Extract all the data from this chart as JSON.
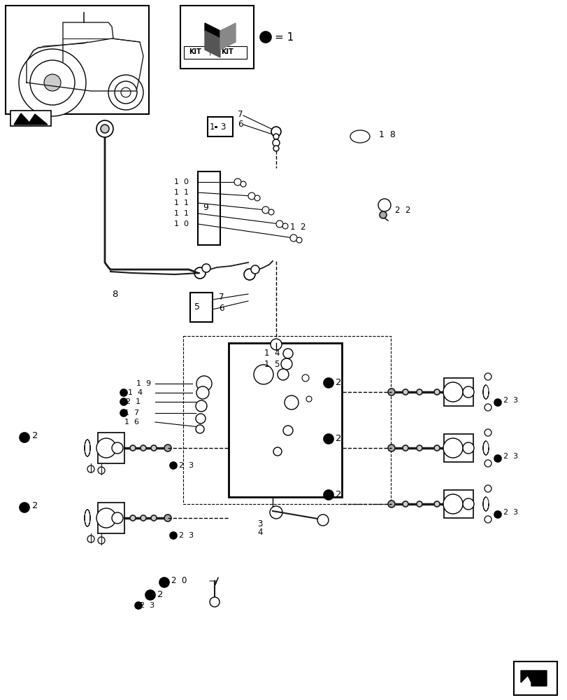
{
  "bg_color": "#ffffff",
  "line_color": "#1a1a1a",
  "figsize": [
    8.12,
    10.0
  ],
  "dpi": 100,
  "xlim": [
    0,
    812
  ],
  "ylim": [
    1000,
    0
  ]
}
